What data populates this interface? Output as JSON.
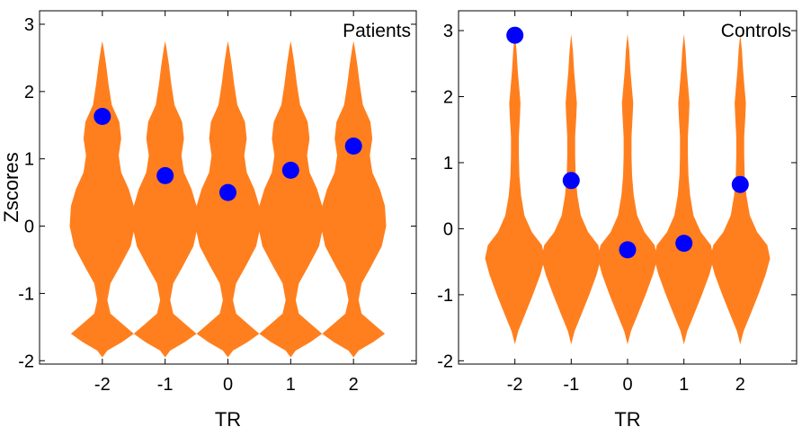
{
  "chart_data": [
    {
      "type": "violin",
      "panel_label": "Patients",
      "xlabel": "TR",
      "ylabel": "Zscores",
      "categories": [
        "-2",
        "-1",
        "0",
        "1",
        "2"
      ],
      "x": [
        -2,
        -1,
        0,
        1,
        2
      ],
      "xlim": [
        -3,
        3
      ],
      "ylim": [
        -2.05,
        3.2
      ],
      "yticks": [
        "-2",
        "-1",
        "0",
        "1",
        "2",
        "3"
      ],
      "violin_color": "#ff7f1e",
      "marker_color": "#0000ff",
      "observed_values": [
        1.63,
        0.75,
        0.5,
        0.83,
        1.19
      ],
      "distribution": [
        [
          -1.95,
          0.0
        ],
        [
          -1.85,
          0.08
        ],
        [
          -1.72,
          0.32
        ],
        [
          -1.6,
          0.5
        ],
        [
          -1.48,
          0.35
        ],
        [
          -1.3,
          0.13
        ],
        [
          -1.1,
          0.08
        ],
        [
          -0.85,
          0.13
        ],
        [
          -0.6,
          0.28
        ],
        [
          -0.3,
          0.45
        ],
        [
          0.0,
          0.52
        ],
        [
          0.3,
          0.5
        ],
        [
          0.55,
          0.42
        ],
        [
          0.8,
          0.3
        ],
        [
          1.05,
          0.26
        ],
        [
          1.3,
          0.3
        ],
        [
          1.55,
          0.27
        ],
        [
          1.8,
          0.15
        ],
        [
          2.1,
          0.1
        ],
        [
          2.4,
          0.06
        ],
        [
          2.65,
          0.02
        ],
        [
          2.75,
          0.0
        ]
      ]
    },
    {
      "type": "violin",
      "panel_label": "Controls",
      "xlabel": "TR",
      "ylabel": "",
      "categories": [
        "-2",
        "-1",
        "0",
        "1",
        "2"
      ],
      "x": [
        -2,
        -1,
        0,
        1,
        2
      ],
      "xlim": [
        -3,
        3
      ],
      "ylim": [
        -2.05,
        3.3
      ],
      "yticks": [
        "-2",
        "-1",
        "0",
        "1",
        "2",
        "3"
      ],
      "violin_color": "#ff7f1e",
      "marker_color": "#0000ff",
      "observed_values": [
        2.93,
        0.73,
        -0.32,
        -0.22,
        0.67
      ],
      "distribution": [
        [
          -1.75,
          0.0
        ],
        [
          -1.55,
          0.06
        ],
        [
          -1.3,
          0.18
        ],
        [
          -1.0,
          0.32
        ],
        [
          -0.7,
          0.45
        ],
        [
          -0.45,
          0.53
        ],
        [
          -0.25,
          0.48
        ],
        [
          -0.05,
          0.3
        ],
        [
          0.2,
          0.17
        ],
        [
          0.5,
          0.11
        ],
        [
          0.8,
          0.08
        ],
        [
          1.1,
          0.07
        ],
        [
          1.4,
          0.07
        ],
        [
          1.7,
          0.09
        ],
        [
          1.9,
          0.1
        ],
        [
          2.1,
          0.08
        ],
        [
          2.4,
          0.05
        ],
        [
          2.7,
          0.03
        ],
        [
          2.95,
          0.0
        ]
      ]
    }
  ]
}
